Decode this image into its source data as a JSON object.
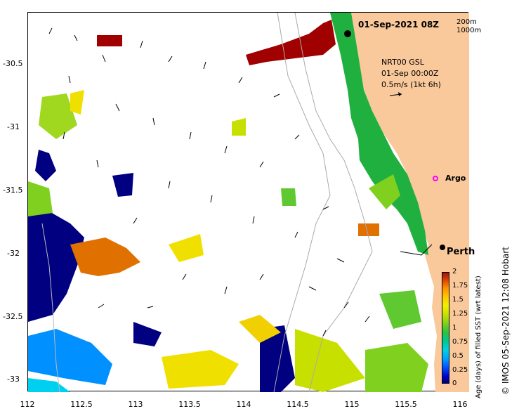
{
  "title": "01-Sep-2021 08Z",
  "depth_contours": [
    "200m",
    "1000m"
  ],
  "current_info": {
    "line1": "NRT00 GSL",
    "line2": "01-Sep 00:00Z",
    "line3": "0.5m/s (1kt 6h)"
  },
  "markers": {
    "argo": "Argo",
    "perth": "Perth"
  },
  "y_axis": {
    "labels": [
      "-30.5",
      "-31",
      "-31.5",
      "-32",
      "-32.5",
      "-33"
    ]
  },
  "x_axis": {
    "labels": [
      "112",
      "112.5",
      "113",
      "113.5",
      "114",
      "114.5",
      "115",
      "115.5",
      "116"
    ]
  },
  "colorbar": {
    "label": "Age (days) of filled SST (wrt latest)",
    "ticks": [
      "2",
      "1.75",
      "1.5",
      "1.25",
      "1",
      "0.75",
      "0.5",
      "0.25",
      "0"
    ]
  },
  "credit": "© IMOS 05-Sep-2021 12:08 Hobart",
  "colors": {
    "land": "#f9c89b",
    "red": "#a00000",
    "green": "#20b040",
    "navy": "#000080",
    "orange": "#e07000",
    "yellow": "#f0e000"
  }
}
